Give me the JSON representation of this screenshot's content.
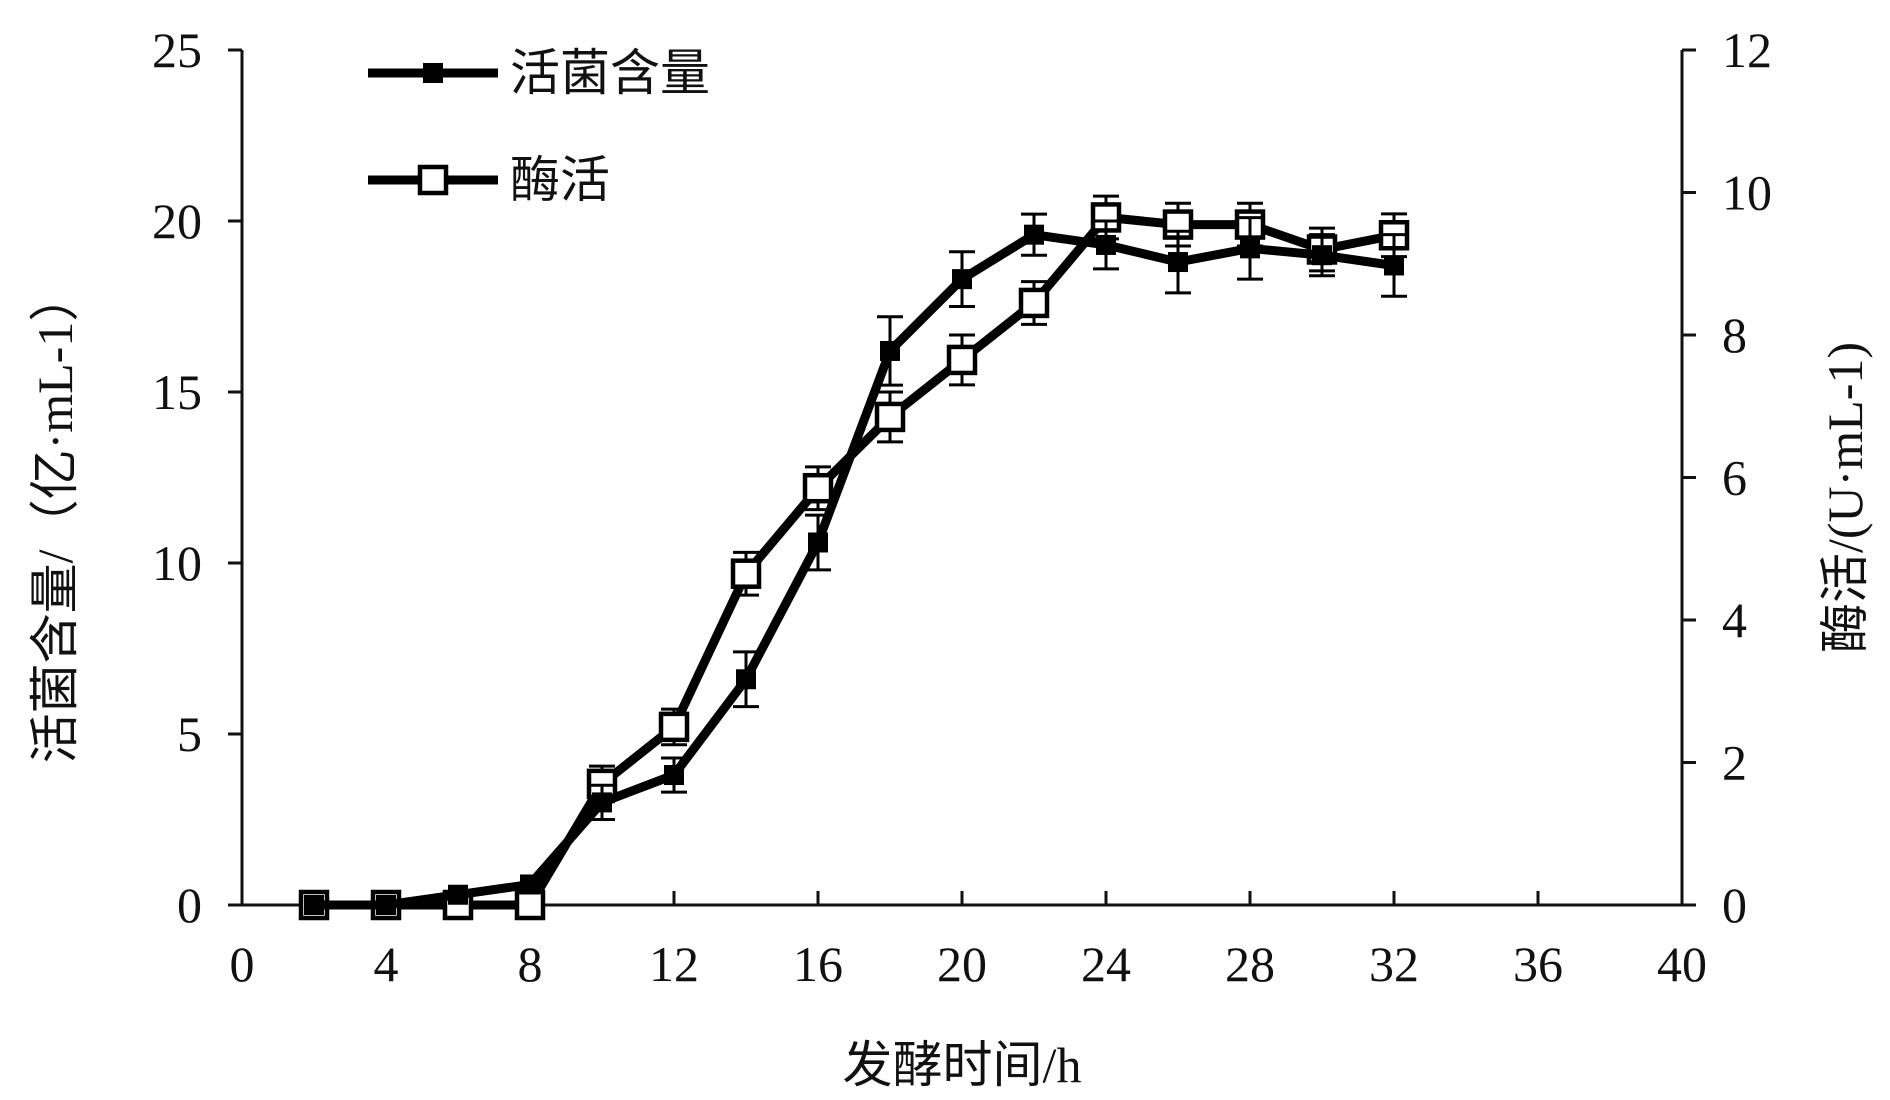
{
  "chart_data": {
    "type": "line",
    "title": "",
    "xlabel": "发酵时间/h",
    "ylabel_left": "活菌含量/（亿·mL-1）",
    "ylabel_right": "酶活/(U·mL-1)",
    "xlim": [
      0,
      40
    ],
    "ylim_left": [
      0,
      25
    ],
    "ylim_right": [
      0,
      12
    ],
    "x_ticks": [
      0,
      4,
      8,
      12,
      16,
      20,
      24,
      28,
      32,
      36,
      40
    ],
    "y_left_ticks": [
      0,
      5,
      10,
      15,
      20,
      25
    ],
    "y_right_ticks": [
      0,
      2,
      4,
      6,
      8,
      10,
      12
    ],
    "grid": false,
    "legend_position": "top-left",
    "x": [
      2,
      4,
      6,
      8,
      10,
      12,
      14,
      16,
      18,
      20,
      22,
      24,
      26,
      28,
      30,
      32
    ],
    "series": [
      {
        "name": "活菌含量",
        "axis": "left",
        "marker": "filled-square",
        "values": [
          0,
          0,
          0.3,
          0.6,
          3.0,
          3.8,
          6.6,
          10.6,
          16.2,
          18.3,
          19.6,
          19.3,
          18.8,
          19.2,
          19.0,
          18.7
        ],
        "errors": [
          0,
          0,
          0,
          0,
          0.5,
          0.5,
          0.8,
          0.8,
          1.0,
          0.8,
          0.6,
          0.7,
          0.9,
          0.9,
          0.6,
          0.9
        ]
      },
      {
        "name": "酶活",
        "axis": "right",
        "marker": "open-square",
        "values": [
          0,
          0,
          0,
          0,
          1.7,
          2.5,
          4.65,
          5.85,
          6.85,
          7.65,
          8.45,
          9.65,
          9.55,
          9.55,
          9.2,
          9.4
        ],
        "errors": [
          0,
          0,
          0,
          0,
          0.25,
          0.25,
          0.3,
          0.3,
          0.35,
          0.35,
          0.3,
          0.3,
          0.3,
          0.3,
          0.3,
          0.3
        ]
      }
    ]
  }
}
